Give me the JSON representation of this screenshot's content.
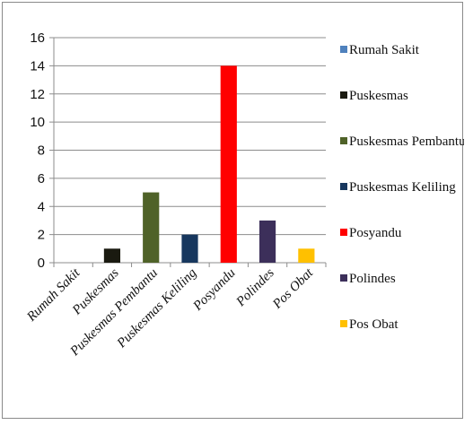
{
  "chart_data": {
    "type": "bar",
    "categories": [
      "Rumah Sakit",
      "Puskesmas",
      "Puskesmas Pembantu",
      "Puskesmas Keliling",
      "Posyandu",
      "Polindes",
      "Pos Obat"
    ],
    "values": [
      0,
      1,
      5,
      2,
      14,
      3,
      1
    ],
    "colors": [
      "#4f81bd",
      "#1a1a10",
      "#4f6228",
      "#17375e",
      "#ff0000",
      "#3c2f5a",
      "#ffc000"
    ],
    "title": "",
    "xlabel": "",
    "ylabel": "",
    "ylim": [
      0,
      16
    ],
    "yticks": [
      0,
      2,
      4,
      6,
      8,
      10,
      12,
      14,
      16
    ],
    "grid": true,
    "legend": {
      "placement": "right",
      "entries": [
        "Rumah Sakit",
        "Puskesmas",
        "Puskesmas Pembantu",
        "Puskesmas Keliling",
        "Posyandu",
        "Polindes",
        "Pos Obat"
      ]
    }
  }
}
